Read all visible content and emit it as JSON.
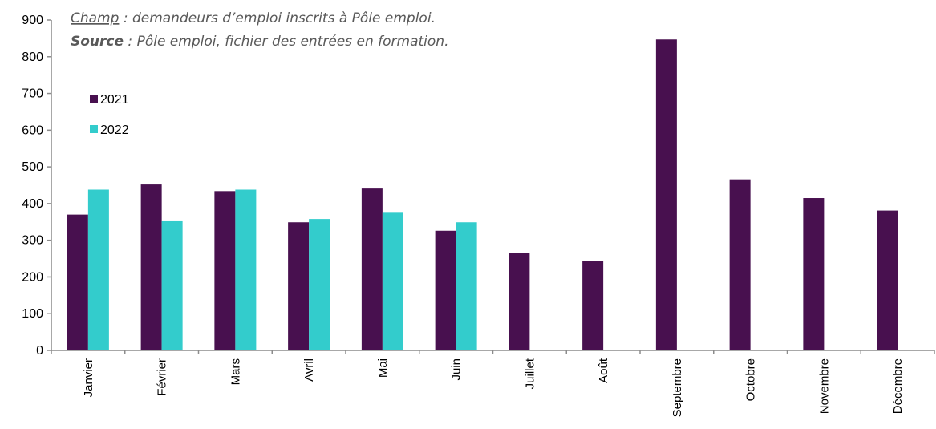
{
  "chart_data": {
    "type": "bar",
    "categories": [
      "Janvier",
      "Février",
      "Mars",
      "Avril",
      "Mai",
      "Juin",
      "Juillet",
      "Août",
      "Septembre",
      "Octobre",
      "Novembre",
      "Décembre"
    ],
    "series": [
      {
        "name": "2021",
        "color": "#48104f",
        "values": [
          370,
          452,
          434,
          349,
          441,
          326,
          266,
          243,
          847,
          466,
          415,
          381
        ]
      },
      {
        "name": "2022",
        "color": "#33cccc",
        "values": [
          438,
          354,
          438,
          358,
          375,
          349,
          null,
          null,
          null,
          null,
          null,
          null
        ]
      }
    ],
    "ylim": [
      0,
      900
    ],
    "yticks": [
      0,
      100,
      200,
      300,
      400,
      500,
      600,
      700,
      800,
      900
    ],
    "grid": false,
    "legend_position": "top-left"
  },
  "notes": {
    "champ_label": "Champ",
    "champ_text": " : demandeurs d’emploi inscrits à Pôle emploi.",
    "source_label": "Source",
    "source_text": " : Pôle emploi, fichier des entrées en formation."
  }
}
